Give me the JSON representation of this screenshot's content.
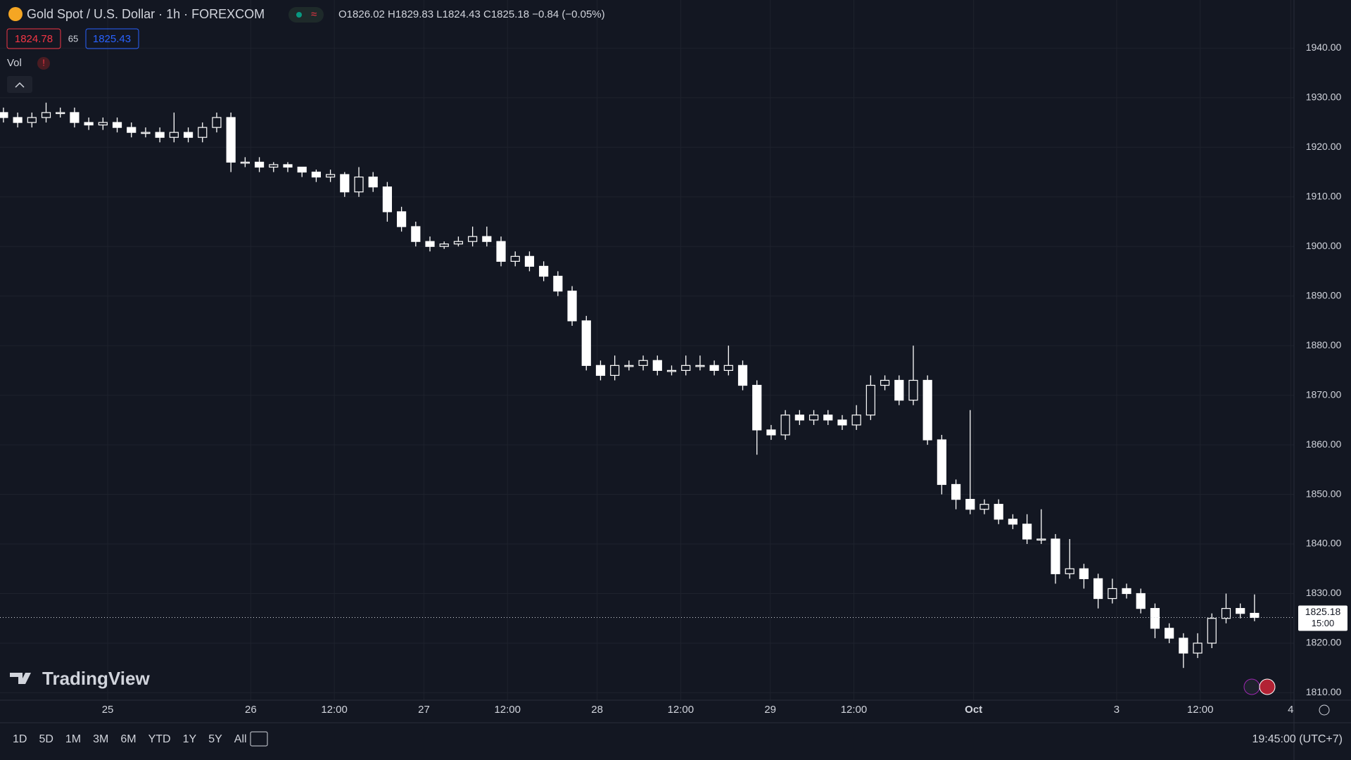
{
  "header": {
    "symbol": "Gold Spot / U.S. Dollar · 1h · FOREXCOM",
    "ohlc": "O1826.02 H1829.83 L1824.43 C1825.18 −0.84 (−0.05%)",
    "bid": "1824.78",
    "spread": "65",
    "ask": "1825.43",
    "volume": "Vol",
    "volume_alert": "!"
  },
  "logo": "TradingView",
  "price_label": {
    "price": "1825.18",
    "countdown": "15:00"
  },
  "toolbar": {
    "ranges": [
      "1D",
      "5D",
      "1M",
      "3M",
      "6M",
      "YTD",
      "1Y",
      "5Y",
      "All"
    ],
    "clock": "19:45:00 (UTC+7)"
  },
  "chart_data": {
    "type": "candlestick",
    "x_labels": [
      "25",
      "26",
      "12:00",
      "27",
      "12:00",
      "28",
      "12:00",
      "29",
      "12:00",
      "Oct",
      "3",
      "12:00",
      "4"
    ],
    "up_color": "#ffffff",
    "down_color": "#ffffff",
    "grid": true,
    "ylim": [
      1808.5,
      1949.7
    ],
    "yticks": [
      {
        "value": 1810,
        "label": "1810.00"
      },
      {
        "value": 1820,
        "label": "1820.00"
      },
      {
        "value": 1830,
        "label": "1830.00"
      },
      {
        "value": 1840,
        "label": "1840.00"
      },
      {
        "value": 1850,
        "label": "1850.00"
      },
      {
        "value": 1860,
        "label": "1860.00"
      },
      {
        "value": 1870,
        "label": "1870.00"
      },
      {
        "value": 1880,
        "label": "1880.00"
      },
      {
        "value": 1890,
        "label": "1890.00"
      },
      {
        "value": 1900,
        "label": "1900.00"
      },
      {
        "value": 1910,
        "label": "1910.00"
      },
      {
        "value": 1920,
        "label": "1920.00"
      },
      {
        "value": 1930,
        "label": "1930.00"
      },
      {
        "value": 1940,
        "label": "1940.00"
      }
    ],
    "open": [
      1927,
      1926,
      1925,
      1926,
      1927,
      1927,
      1925,
      1924.5,
      1925,
      1924,
      1923,
      1923,
      1922,
      1923,
      1922,
      1924,
      1926,
      1917,
      1917,
      1916,
      1916.5,
      1916,
      1915,
      1914,
      1914.5,
      1911,
      1914,
      1912,
      1907,
      1904,
      1901,
      1900,
      1900.5,
      1901,
      1902,
      1901,
      1897,
      1898,
      1896,
      1894,
      1891,
      1885,
      1876,
      1874,
      1876,
      1876,
      1877,
      1875,
      1875,
      1876,
      1876,
      1875,
      1876,
      1872,
      1863,
      1862,
      1866,
      1865,
      1866,
      1865,
      1864,
      1866,
      1872,
      1873,
      1869,
      1873,
      1861,
      1852,
      1849,
      1847,
      1848,
      1845,
      1844,
      1841,
      1841,
      1834,
      1835,
      1833,
      1829,
      1831,
      1830,
      1827,
      1823,
      1821,
      1818,
      1820,
      1825,
      1827,
      1826.02
    ],
    "high": [
      1928,
      1927,
      1927,
      1929,
      1928,
      1928,
      1926,
      1926,
      1926,
      1925,
      1924,
      1924,
      1927,
      1924,
      1925,
      1927,
      1927,
      1918,
      1918,
      1917,
      1917,
      1916,
      1915.5,
      1915.5,
      1915,
      1916,
      1915,
      1913,
      1908,
      1905,
      1902,
      1901,
      1902,
      1904,
      1904,
      1902,
      1899,
      1899,
      1897,
      1895,
      1892,
      1886,
      1877,
      1878,
      1877,
      1878,
      1878,
      1876,
      1878,
      1878,
      1877,
      1880,
      1877,
      1873,
      1864,
      1867,
      1867,
      1867,
      1867,
      1866,
      1868,
      1874,
      1874,
      1874,
      1880,
      1874,
      1862,
      1853,
      1867,
      1849,
      1849,
      1846,
      1846,
      1847,
      1842,
      1841,
      1836,
      1834,
      1833,
      1832,
      1831,
      1828,
      1824,
      1822,
      1822,
      1826,
      1830,
      1828,
      1829.83
    ],
    "low": [
      1925,
      1924,
      1924,
      1925,
      1926,
      1924,
      1923.5,
      1923.5,
      1923,
      1922,
      1922,
      1921,
      1921,
      1921,
      1921,
      1923,
      1915,
      1916,
      1915,
      1915,
      1915,
      1914,
      1913,
      1913,
      1910,
      1910,
      1911,
      1905,
      1903,
      1900,
      1899,
      1899.5,
      1900,
      1900,
      1900,
      1896,
      1896,
      1895,
      1893,
      1890,
      1884,
      1875,
      1873,
      1873,
      1875,
      1875,
      1874,
      1874,
      1874,
      1875,
      1874,
      1874,
      1871,
      1858,
      1861,
      1861,
      1864,
      1864,
      1864,
      1863,
      1863,
      1865,
      1871,
      1868,
      1868,
      1860,
      1850,
      1847,
      1846,
      1846,
      1844,
      1843,
      1840,
      1840,
      1832,
      1833,
      1831,
      1827,
      1828,
      1829,
      1826,
      1821,
      1820,
      1815,
      1817,
      1819,
      1824,
      1825,
      1824.43
    ],
    "close": [
      1926,
      1925,
      1926,
      1927,
      1927,
      1925,
      1924.5,
      1925,
      1924,
      1923,
      1923,
      1922,
      1923,
      1922,
      1924,
      1926,
      1917,
      1917,
      1916,
      1916.5,
      1916,
      1915,
      1914,
      1914.5,
      1911,
      1914,
      1912,
      1907,
      1904,
      1901,
      1900,
      1900.5,
      1901,
      1902,
      1901,
      1897,
      1898,
      1896,
      1894,
      1891,
      1885,
      1876,
      1874,
      1876,
      1876,
      1877,
      1875,
      1875,
      1876,
      1876,
      1875,
      1876,
      1872,
      1863,
      1862,
      1866,
      1865,
      1866,
      1865,
      1864,
      1866,
      1872,
      1873,
      1869,
      1873,
      1861,
      1852,
      1849,
      1847,
      1848,
      1845,
      1844,
      1841,
      1841,
      1834,
      1835,
      1833,
      1829,
      1831,
      1830,
      1827,
      1823,
      1821,
      1818,
      1820,
      1825,
      1827,
      1826,
      1825.18
    ]
  }
}
